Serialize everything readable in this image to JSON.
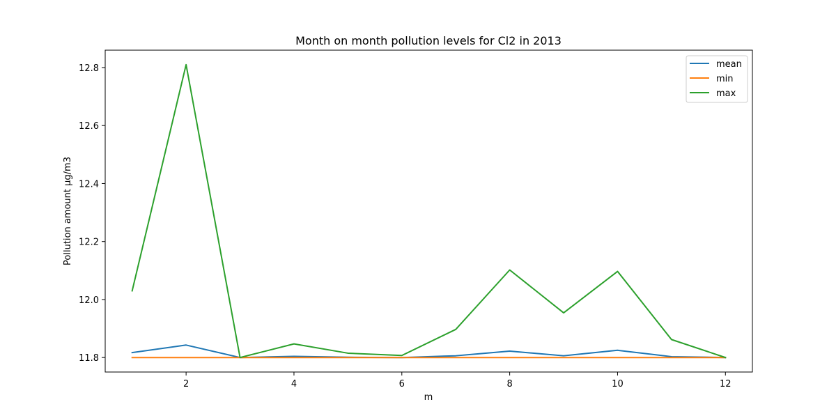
{
  "chart_data": {
    "type": "line",
    "title": "Month on month pollution levels for Cl2 in 2013",
    "xlabel": "m",
    "ylabel": "Pollution amount µg/m3",
    "x": [
      1,
      2,
      3,
      4,
      5,
      6,
      7,
      8,
      9,
      10,
      11,
      12
    ],
    "xlim": [
      0.5,
      12.5
    ],
    "ylim": [
      11.75,
      12.86
    ],
    "xticks": [
      2,
      4,
      6,
      8,
      10,
      12
    ],
    "yticks": [
      11.8,
      12.0,
      12.2,
      12.4,
      12.6,
      12.8
    ],
    "ytick_labels": [
      "11.8",
      "12.0",
      "12.2",
      "12.4",
      "12.6",
      "12.8"
    ],
    "grid": false,
    "legend_position": "top-right",
    "series": [
      {
        "name": "mean",
        "color": "#1f77b4",
        "values": [
          11.817,
          11.843,
          11.8,
          11.804,
          11.801,
          11.8,
          11.806,
          11.822,
          11.806,
          11.825,
          11.803,
          11.8
        ]
      },
      {
        "name": "min",
        "color": "#ff7f0e",
        "values": [
          11.8,
          11.8,
          11.8,
          11.8,
          11.8,
          11.8,
          11.8,
          11.8,
          11.8,
          11.8,
          11.8,
          11.8
        ]
      },
      {
        "name": "max",
        "color": "#2ca02c",
        "values": [
          12.03,
          12.81,
          11.8,
          11.847,
          11.815,
          11.807,
          11.897,
          12.102,
          11.954,
          12.097,
          11.862,
          11.8
        ]
      }
    ]
  }
}
